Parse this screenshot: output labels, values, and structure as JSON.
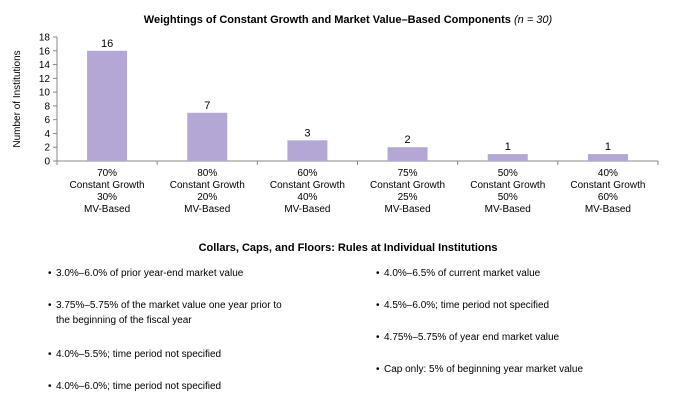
{
  "chart_title": "Weightings of Constant Growth and Market Value–Based Components",
  "chart_title_note": "(n = 30)",
  "chart_data": {
    "type": "bar",
    "title": "Weightings of Constant Growth and Market Value–Based Components (n = 30)",
    "ylabel": "Number of Institutions",
    "xlabel": "",
    "ylim": [
      0,
      18
    ],
    "yticks": [
      0,
      2,
      4,
      6,
      8,
      10,
      12,
      14,
      16,
      18
    ],
    "categories": [
      [
        "70%",
        "Constant Growth",
        "30%",
        "MV-Based"
      ],
      [
        "80%",
        "Constant Growth",
        "20%",
        "MV-Based"
      ],
      [
        "60%",
        "Constant Growth",
        "40%",
        "MV-Based"
      ],
      [
        "75%",
        "Constant Growth",
        "25%",
        "MV-Based"
      ],
      [
        "50%",
        "Constant Growth",
        "50%",
        "MV-Based"
      ],
      [
        "40%",
        "Constant Growth",
        "60%",
        "MV-Based"
      ]
    ],
    "values": [
      16,
      7,
      3,
      2,
      1,
      1
    ],
    "bar_color": "#b4a7d6",
    "grid": false
  },
  "rules_title": "Collars, Caps, and Floors: Rules at Individual Institutions",
  "rules_left": [
    {
      "bullet": "•",
      "text": "3.0%–6.0% of prior year-end market value"
    },
    {
      "bullet": "•",
      "text": "3.75%–5.75% of the market value one year prior to",
      "text2": "the beginning of the fiscal year"
    },
    {
      "bullet": "•",
      "text": "4.0%–5.5%; time period not specified"
    },
    {
      "bullet": "•",
      "text": "4.0%–6.0%; time period not specified"
    }
  ],
  "rules_right": [
    {
      "bullet": "•",
      "text": "4.0%–6.5% of current market value"
    },
    {
      "bullet": "•",
      "text": "4.5%–6.0%; time period not specified"
    },
    {
      "bullet": "•",
      "text": "4.75%–5.75% of year end market value"
    },
    {
      "bullet": "•",
      "text": "Cap only: 5% of beginning year market value"
    }
  ]
}
